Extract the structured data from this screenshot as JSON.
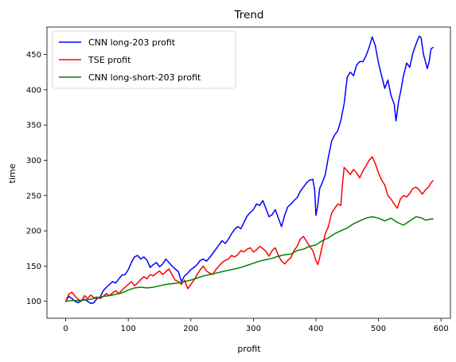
{
  "chart_data": {
    "type": "line",
    "title": "Trend",
    "xlabel": "profit",
    "ylabel": "time",
    "xlim": [
      -30,
      615
    ],
    "ylim": [
      76,
      489
    ],
    "xticks": [
      0,
      100,
      200,
      300,
      400,
      500,
      600
    ],
    "yticks": [
      100,
      150,
      200,
      250,
      300,
      350,
      400,
      450
    ],
    "grid": false,
    "legend_position": "top-left",
    "series": [
      {
        "name": "CNN long-203 profit",
        "color": "#0000ff",
        "points": [
          [
            0,
            100
          ],
          [
            5,
            107
          ],
          [
            10,
            104
          ],
          [
            15,
            100
          ],
          [
            20,
            98
          ],
          [
            25,
            101
          ],
          [
            30,
            103
          ],
          [
            35,
            100
          ],
          [
            40,
            97
          ],
          [
            45,
            98
          ],
          [
            50,
            104
          ],
          [
            55,
            106
          ],
          [
            60,
            115
          ],
          [
            65,
            120
          ],
          [
            70,
            124
          ],
          [
            75,
            128
          ],
          [
            80,
            126
          ],
          [
            85,
            132
          ],
          [
            90,
            137
          ],
          [
            95,
            138
          ],
          [
            100,
            145
          ],
          [
            105,
            155
          ],
          [
            110,
            163
          ],
          [
            115,
            165
          ],
          [
            120,
            160
          ],
          [
            125,
            163
          ],
          [
            130,
            158
          ],
          [
            135,
            148
          ],
          [
            140,
            152
          ],
          [
            145,
            155
          ],
          [
            150,
            149
          ],
          [
            155,
            153
          ],
          [
            160,
            160
          ],
          [
            165,
            155
          ],
          [
            170,
            150
          ],
          [
            175,
            146
          ],
          [
            180,
            142
          ],
          [
            185,
            128
          ],
          [
            190,
            136
          ],
          [
            195,
            140
          ],
          [
            200,
            145
          ],
          [
            205,
            148
          ],
          [
            210,
            152
          ],
          [
            215,
            158
          ],
          [
            220,
            160
          ],
          [
            225,
            157
          ],
          [
            230,
            162
          ],
          [
            235,
            168
          ],
          [
            240,
            174
          ],
          [
            245,
            180
          ],
          [
            250,
            186
          ],
          [
            255,
            182
          ],
          [
            260,
            188
          ],
          [
            265,
            196
          ],
          [
            270,
            202
          ],
          [
            275,
            206
          ],
          [
            280,
            203
          ],
          [
            285,
            212
          ],
          [
            290,
            221
          ],
          [
            295,
            226
          ],
          [
            300,
            230
          ],
          [
            305,
            238
          ],
          [
            310,
            236
          ],
          [
            315,
            243
          ],
          [
            320,
            232
          ],
          [
            325,
            220
          ],
          [
            330,
            223
          ],
          [
            335,
            230
          ],
          [
            340,
            218
          ],
          [
            345,
            206
          ],
          [
            350,
            222
          ],
          [
            355,
            234
          ],
          [
            360,
            238
          ],
          [
            365,
            243
          ],
          [
            370,
            247
          ],
          [
            375,
            256
          ],
          [
            380,
            262
          ],
          [
            385,
            268
          ],
          [
            390,
            272
          ],
          [
            395,
            273
          ],
          [
            398,
            258
          ],
          [
            400,
            222
          ],
          [
            403,
            237
          ],
          [
            406,
            260
          ],
          [
            410,
            268
          ],
          [
            415,
            280
          ],
          [
            420,
            305
          ],
          [
            425,
            327
          ],
          [
            430,
            336
          ],
          [
            435,
            342
          ],
          [
            440,
            357
          ],
          [
            445,
            380
          ],
          [
            450,
            418
          ],
          [
            455,
            425
          ],
          [
            460,
            420
          ],
          [
            465,
            435
          ],
          [
            470,
            440
          ],
          [
            475,
            440
          ],
          [
            480,
            448
          ],
          [
            485,
            460
          ],
          [
            490,
            475
          ],
          [
            495,
            462
          ],
          [
            500,
            438
          ],
          [
            505,
            420
          ],
          [
            510,
            402
          ],
          [
            515,
            414
          ],
          [
            520,
            392
          ],
          [
            525,
            380
          ],
          [
            528,
            356
          ],
          [
            532,
            383
          ],
          [
            536,
            400
          ],
          [
            540,
            420
          ],
          [
            545,
            438
          ],
          [
            550,
            432
          ],
          [
            555,
            452
          ],
          [
            560,
            465
          ],
          [
            565,
            476
          ],
          [
            568,
            474
          ],
          [
            572,
            450
          ],
          [
            575,
            440
          ],
          [
            578,
            430
          ],
          [
            581,
            440
          ],
          [
            584,
            458
          ],
          [
            587,
            460
          ]
        ]
      },
      {
        "name": "TSE profit",
        "color": "#ff0000",
        "points": [
          [
            0,
            100
          ],
          [
            5,
            110
          ],
          [
            10,
            113
          ],
          [
            15,
            107
          ],
          [
            20,
            103
          ],
          [
            25,
            100
          ],
          [
            30,
            108
          ],
          [
            35,
            104
          ],
          [
            40,
            109
          ],
          [
            45,
            105
          ],
          [
            50,
            106
          ],
          [
            55,
            104
          ],
          [
            60,
            107
          ],
          [
            65,
            111
          ],
          [
            70,
            108
          ],
          [
            75,
            112
          ],
          [
            80,
            115
          ],
          [
            85,
            111
          ],
          [
            90,
            116
          ],
          [
            95,
            120
          ],
          [
            100,
            124
          ],
          [
            105,
            128
          ],
          [
            110,
            122
          ],
          [
            115,
            126
          ],
          [
            120,
            131
          ],
          [
            125,
            135
          ],
          [
            130,
            132
          ],
          [
            135,
            138
          ],
          [
            140,
            136
          ],
          [
            145,
            140
          ],
          [
            150,
            143
          ],
          [
            155,
            138
          ],
          [
            160,
            142
          ],
          [
            165,
            146
          ],
          [
            170,
            138
          ],
          [
            175,
            130
          ],
          [
            180,
            128
          ],
          [
            185,
            124
          ],
          [
            190,
            130
          ],
          [
            195,
            118
          ],
          [
            200,
            124
          ],
          [
            205,
            130
          ],
          [
            210,
            138
          ],
          [
            215,
            145
          ],
          [
            220,
            150
          ],
          [
            225,
            143
          ],
          [
            230,
            140
          ],
          [
            235,
            138
          ],
          [
            240,
            145
          ],
          [
            245,
            150
          ],
          [
            250,
            155
          ],
          [
            255,
            158
          ],
          [
            260,
            160
          ],
          [
            265,
            165
          ],
          [
            270,
            163
          ],
          [
            275,
            166
          ],
          [
            280,
            172
          ],
          [
            285,
            170
          ],
          [
            290,
            174
          ],
          [
            295,
            176
          ],
          [
            300,
            170
          ],
          [
            305,
            173
          ],
          [
            310,
            178
          ],
          [
            315,
            175
          ],
          [
            320,
            171
          ],
          [
            325,
            164
          ],
          [
            330,
            172
          ],
          [
            335,
            176
          ],
          [
            340,
            165
          ],
          [
            345,
            157
          ],
          [
            350,
            153
          ],
          [
            355,
            158
          ],
          [
            360,
            162
          ],
          [
            365,
            172
          ],
          [
            370,
            178
          ],
          [
            375,
            188
          ],
          [
            380,
            192
          ],
          [
            385,
            185
          ],
          [
            390,
            178
          ],
          [
            395,
            172
          ],
          [
            400,
            158
          ],
          [
            403,
            152
          ],
          [
            406,
            162
          ],
          [
            410,
            178
          ],
          [
            415,
            196
          ],
          [
            420,
            206
          ],
          [
            425,
            225
          ],
          [
            430,
            232
          ],
          [
            435,
            238
          ],
          [
            440,
            236
          ],
          [
            442,
            262
          ],
          [
            445,
            290
          ],
          [
            450,
            285
          ],
          [
            455,
            280
          ],
          [
            460,
            287
          ],
          [
            465,
            282
          ],
          [
            470,
            275
          ],
          [
            475,
            285
          ],
          [
            480,
            292
          ],
          [
            485,
            300
          ],
          [
            490,
            305
          ],
          [
            495,
            295
          ],
          [
            500,
            282
          ],
          [
            505,
            272
          ],
          [
            510,
            265
          ],
          [
            515,
            250
          ],
          [
            520,
            245
          ],
          [
            525,
            238
          ],
          [
            530,
            232
          ],
          [
            535,
            245
          ],
          [
            540,
            250
          ],
          [
            545,
            248
          ],
          [
            550,
            253
          ],
          [
            555,
            260
          ],
          [
            560,
            262
          ],
          [
            565,
            258
          ],
          [
            570,
            252
          ],
          [
            575,
            258
          ],
          [
            580,
            262
          ],
          [
            584,
            268
          ],
          [
            587,
            271
          ]
        ]
      },
      {
        "name": "CNN long-short-203 profit",
        "color": "#008000",
        "points": [
          [
            0,
            100
          ],
          [
            10,
            101
          ],
          [
            20,
            101
          ],
          [
            30,
            102
          ],
          [
            40,
            103
          ],
          [
            50,
            105
          ],
          [
            60,
            107
          ],
          [
            70,
            108
          ],
          [
            80,
            110
          ],
          [
            90,
            112
          ],
          [
            100,
            116
          ],
          [
            110,
            119
          ],
          [
            120,
            120
          ],
          [
            130,
            119
          ],
          [
            140,
            120
          ],
          [
            150,
            122
          ],
          [
            160,
            124
          ],
          [
            170,
            125
          ],
          [
            180,
            126
          ],
          [
            190,
            128
          ],
          [
            200,
            130
          ],
          [
            210,
            133
          ],
          [
            220,
            136
          ],
          [
            230,
            138
          ],
          [
            240,
            140
          ],
          [
            250,
            142
          ],
          [
            260,
            144
          ],
          [
            270,
            146
          ],
          [
            280,
            148
          ],
          [
            290,
            151
          ],
          [
            300,
            154
          ],
          [
            310,
            157
          ],
          [
            320,
            159
          ],
          [
            330,
            161
          ],
          [
            340,
            164
          ],
          [
            350,
            166
          ],
          [
            360,
            167
          ],
          [
            370,
            172
          ],
          [
            380,
            174
          ],
          [
            390,
            178
          ],
          [
            400,
            180
          ],
          [
            410,
            186
          ],
          [
            420,
            190
          ],
          [
            430,
            196
          ],
          [
            440,
            200
          ],
          [
            450,
            204
          ],
          [
            460,
            210
          ],
          [
            470,
            214
          ],
          [
            480,
            218
          ],
          [
            490,
            220
          ],
          [
            500,
            218
          ],
          [
            510,
            214
          ],
          [
            520,
            218
          ],
          [
            530,
            212
          ],
          [
            540,
            208
          ],
          [
            550,
            214
          ],
          [
            560,
            220
          ],
          [
            570,
            218
          ],
          [
            575,
            215
          ],
          [
            580,
            216
          ],
          [
            587,
            217
          ]
        ]
      }
    ]
  }
}
